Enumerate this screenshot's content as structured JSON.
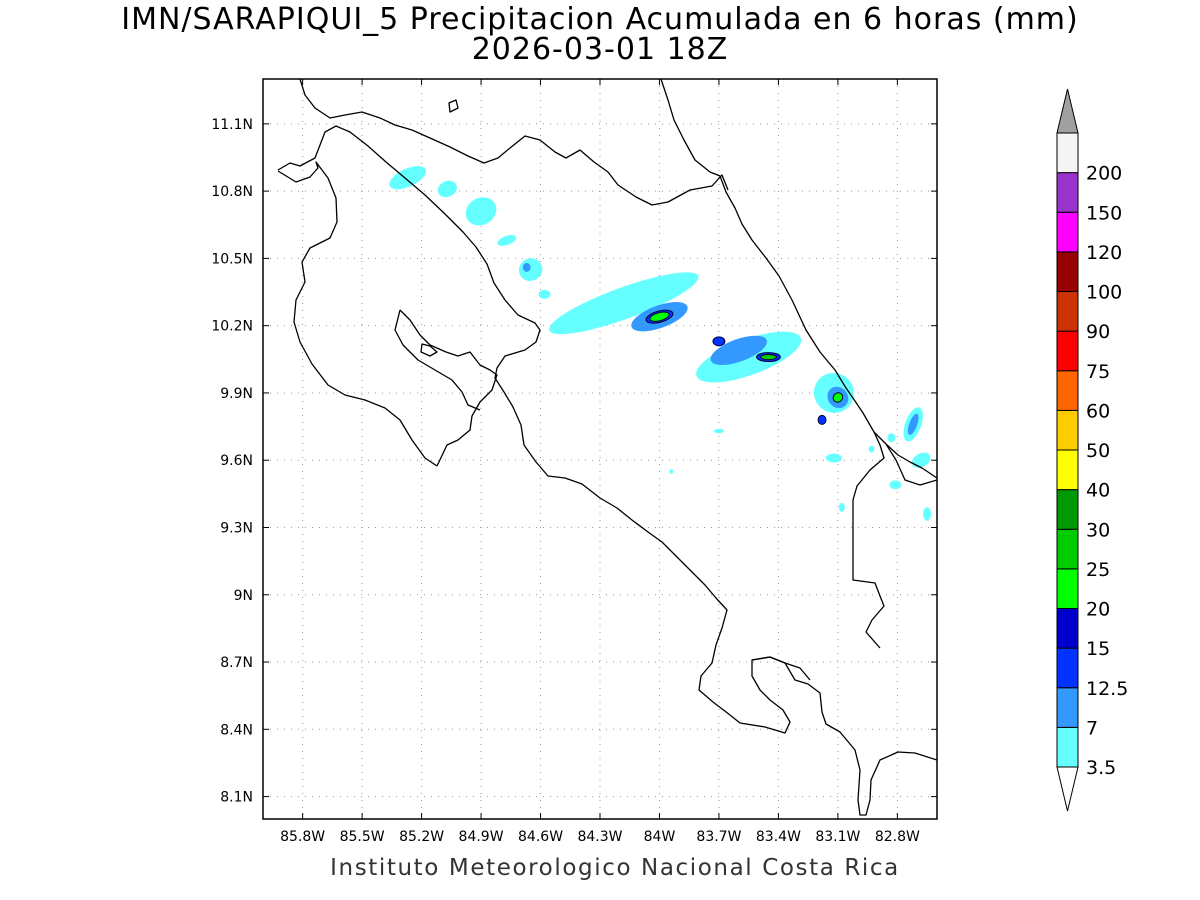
{
  "title": {
    "line1": "IMN/SARAPIQUI_5 Precipitacion Acumulada en 6 horas (mm)",
    "line2": "2026-03-01 18Z"
  },
  "credit": "Instituto Meteorologico Nacional Costa Rica",
  "map": {
    "lon_labels": [
      "85.8W",
      "85.5W",
      "85.2W",
      "84.9W",
      "84.6W",
      "84.3W",
      "84W",
      "83.7W",
      "83.4W",
      "83.1W",
      "82.8W"
    ],
    "lat_labels": [
      "11.1N",
      "10.8N",
      "10.5N",
      "10.2N",
      "9.9N",
      "9.6N",
      "9.3N",
      "9N",
      "8.7N",
      "8.4N",
      "8.1N"
    ],
    "grid": true,
    "coastline_color": "#000000"
  },
  "colorbar": {
    "levels": [
      "3.5",
      "7",
      "12.5",
      "15",
      "20",
      "25",
      "30",
      "40",
      "50",
      "60",
      "75",
      "90",
      "100",
      "120",
      "150",
      "200"
    ],
    "colors": [
      "#66ffff",
      "#3399ff",
      "#0033ff",
      "#0000cc",
      "#00ff00",
      "#00cc00",
      "#009900",
      "#ffff00",
      "#ffcc00",
      "#ff6600",
      "#ff0000",
      "#cc3300",
      "#990000",
      "#ff00ff",
      "#9933cc",
      "#f5f5f5"
    ],
    "over_color": "#a0a0a0",
    "under_color": "#ffffff"
  },
  "chart_data": {
    "type": "heatmap",
    "title": "IMN/SARAPIQUI_5 Precipitacion Acumulada en 6 horas (mm)",
    "subtitle": "2026-03-01 18Z",
    "xlabel": "",
    "ylabel": "",
    "xlim": [
      -86.0,
      -82.6
    ],
    "ylim": [
      8.0,
      11.3
    ],
    "units": "mm",
    "features": [
      {
        "lon": -85.27,
        "lat": 10.86,
        "rlon": 0.1,
        "rlat": 0.04,
        "angle": -25,
        "level": 0
      },
      {
        "lon": -85.07,
        "lat": 10.81,
        "rlon": 0.05,
        "rlat": 0.035,
        "angle": -25,
        "level": 0
      },
      {
        "lon": -84.9,
        "lat": 10.71,
        "rlon": 0.08,
        "rlat": 0.06,
        "angle": -30,
        "level": 0
      },
      {
        "lon": -84.77,
        "lat": 10.58,
        "rlon": 0.05,
        "rlat": 0.02,
        "angle": -20,
        "level": 0
      },
      {
        "lon": -84.65,
        "lat": 10.45,
        "rlon": 0.06,
        "rlat": 0.05,
        "angle": -25,
        "level": 0
      },
      {
        "lon": -84.67,
        "lat": 10.46,
        "rlon": 0.02,
        "rlat": 0.02,
        "angle": 0,
        "level": 1
      },
      {
        "lon": -84.18,
        "lat": 10.3,
        "rlon": 0.4,
        "rlat": 0.07,
        "angle": -20,
        "level": 0
      },
      {
        "lon": -84.0,
        "lat": 10.24,
        "rlon": 0.15,
        "rlat": 0.05,
        "angle": -20,
        "level": 1
      },
      {
        "lon": -84.0,
        "lat": 10.24,
        "rlon": 0.07,
        "rlat": 0.025,
        "angle": -15,
        "level": 2
      },
      {
        "lon": -84.0,
        "lat": 10.24,
        "rlon": 0.05,
        "rlat": 0.018,
        "angle": -15,
        "level": 4
      },
      {
        "lon": -83.55,
        "lat": 10.06,
        "rlon": 0.28,
        "rlat": 0.08,
        "angle": -20,
        "level": 0
      },
      {
        "lon": -83.6,
        "lat": 10.09,
        "rlon": 0.15,
        "rlat": 0.05,
        "angle": -20,
        "level": 1
      },
      {
        "lon": -83.7,
        "lat": 10.13,
        "rlon": 0.03,
        "rlat": 0.02,
        "angle": 0,
        "level": 2
      },
      {
        "lon": -83.45,
        "lat": 10.06,
        "rlon": 0.06,
        "rlat": 0.02,
        "angle": 0,
        "level": 2
      },
      {
        "lon": -83.45,
        "lat": 10.06,
        "rlon": 0.04,
        "rlat": 0.012,
        "angle": 0,
        "level": 5
      },
      {
        "lon": -83.12,
        "lat": 9.9,
        "rlon": 0.1,
        "rlat": 0.09,
        "angle": -40,
        "level": 0
      },
      {
        "lon": -83.1,
        "lat": 9.88,
        "rlon": 0.05,
        "rlat": 0.05,
        "angle": -40,
        "level": 1
      },
      {
        "lon": -83.1,
        "lat": 9.88,
        "rlon": 0.025,
        "rlat": 0.02,
        "angle": -40,
        "level": 4
      },
      {
        "lon": -83.18,
        "lat": 9.78,
        "rlon": 0.02,
        "rlat": 0.02,
        "angle": 0,
        "level": 2
      },
      {
        "lon": -82.72,
        "lat": 9.76,
        "rlon": 0.04,
        "rlat": 0.08,
        "angle": 20,
        "level": 0
      },
      {
        "lon": -82.72,
        "lat": 9.76,
        "rlon": 0.02,
        "rlat": 0.05,
        "angle": 20,
        "level": 1
      },
      {
        "lon": -82.68,
        "lat": 9.6,
        "rlon": 0.05,
        "rlat": 0.03,
        "angle": -30,
        "level": 0
      },
      {
        "lon": -83.12,
        "lat": 9.61,
        "rlon": 0.04,
        "rlat": 0.02,
        "angle": 0,
        "level": 0
      },
      {
        "lon": -82.81,
        "lat": 9.49,
        "rlon": 0.03,
        "rlat": 0.02,
        "angle": 0,
        "level": 0
      },
      {
        "lon": -82.65,
        "lat": 9.36,
        "rlon": 0.02,
        "rlat": 0.03,
        "angle": 0,
        "level": 0
      },
      {
        "lon": -83.08,
        "lat": 9.39,
        "rlon": 0.015,
        "rlat": 0.02,
        "angle": 0,
        "level": 0
      },
      {
        "lon": -83.7,
        "lat": 9.73,
        "rlon": 0.025,
        "rlat": 0.01,
        "angle": 0,
        "level": 0
      },
      {
        "lon": -83.94,
        "lat": 9.55,
        "rlon": 0.01,
        "rlat": 0.01,
        "angle": 0,
        "level": 0
      },
      {
        "lon": -84.58,
        "lat": 10.34,
        "rlon": 0.03,
        "rlat": 0.02,
        "angle": 0,
        "level": 0
      },
      {
        "lon": -82.83,
        "lat": 9.7,
        "rlon": 0.02,
        "rlat": 0.02,
        "angle": 0,
        "level": 0
      },
      {
        "lon": -82.93,
        "lat": 9.65,
        "rlon": 0.015,
        "rlat": 0.015,
        "angle": 0,
        "level": 0
      }
    ]
  }
}
